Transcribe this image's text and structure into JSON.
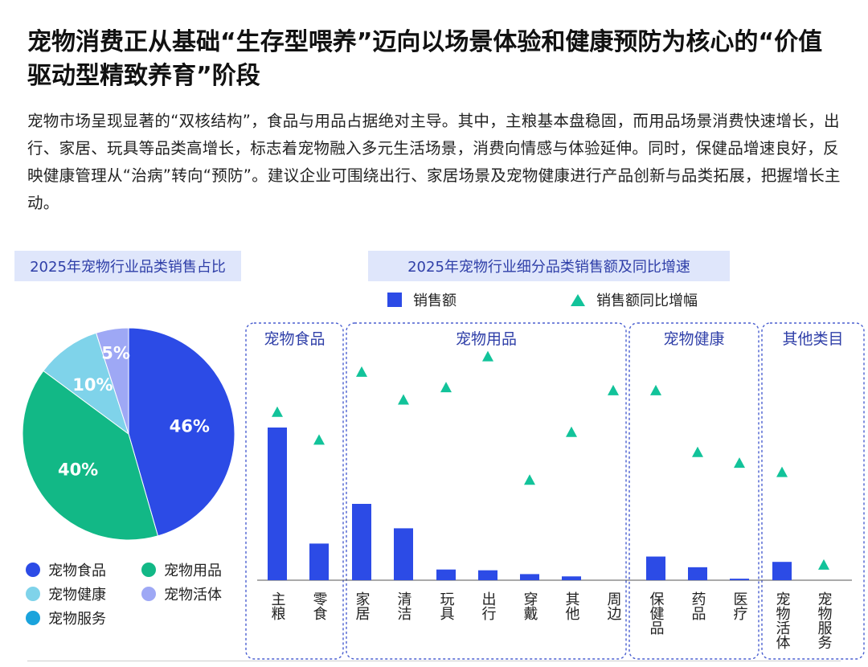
{
  "page": {
    "title": "宠物消费正从基础“生存型喂养”迈向以场景体验和健康预防为核心的“价值驱动型精致养育”阶段",
    "paragraph": "宠物市场呈现显著的“双核结构”，食品与用品占据绝对主导。其中，主粮基本盘稳固，而用品场景消费快速增长，出行、家居、玩具等品类高增长，标志着宠物融入多元生活场景，消费向情感与体验延伸。同时，保健品增速良好，反映健康管理从“治病”转向“预防”。建议企业可围绕出行、家居场景及宠物健康进行产品创新与品类拓展，把握增长主动。"
  },
  "pie_title": "2025年宠物行业品类销售占比",
  "bar_title": "2025年宠物行业细分品类销售额及同比增速",
  "legend": {
    "bar": "销售额",
    "triangle": "销售额同比增幅"
  },
  "colors": {
    "food": "#2c4be6",
    "supplies": "#12b886",
    "health": "#7fd3ea",
    "live": "#9ea8f5",
    "service": "#1aa3dc",
    "bar": "#2c4be6",
    "triangle": "#12c39a"
  },
  "pie_legend": [
    {
      "label": "宠物食品",
      "color": "#2c4be6"
    },
    {
      "label": "宠物用品",
      "color": "#12b886"
    },
    {
      "label": "宠物健康",
      "color": "#7fd3ea"
    },
    {
      "label": "宠物活体",
      "color": "#9ea8f5"
    },
    {
      "label": "宠物服务",
      "color": "#1aa3dc"
    }
  ],
  "groups": [
    {
      "label": "宠物食品",
      "count": 2
    },
    {
      "label": "宠物用品",
      "count": 7
    },
    {
      "label": "宠物健康",
      "count": 3
    },
    {
      "label": "其他类目",
      "count": 2
    }
  ],
  "chart_data": [
    {
      "type": "pie",
      "title": "2025年宠物行业品类销售占比",
      "slices": [
        {
          "name": "宠物食品",
          "value": 46,
          "label": "46%"
        },
        {
          "name": "宠物用品",
          "value": 40,
          "label": "40%"
        },
        {
          "name": "宠物健康",
          "value": 10,
          "label": "10%"
        },
        {
          "name": "宠物活体",
          "value": 5,
          "label": "5%"
        },
        {
          "name": "宠物服务",
          "value": 0,
          "label": ""
        }
      ]
    },
    {
      "type": "bar",
      "title": "2025年宠物行业细分品类销售额及同比增速",
      "categories": [
        "主粮",
        "零食",
        "家居",
        "清洁",
        "玩具",
        "出行",
        "穿戴",
        "其他",
        "周边",
        "保健品",
        "药品",
        "医疗",
        "宠物活体",
        "宠物服务"
      ],
      "series": [
        {
          "name": "销售额",
          "type": "bar",
          "values": [
            100,
            24,
            50,
            34,
            7,
            6.5,
            4,
            2.5,
            0,
            15.5,
            8.5,
            1,
            12,
            0
          ]
        },
        {
          "name": "销售额同比增幅",
          "type": "marker",
          "values": [
            110,
            92,
            136,
            118,
            126,
            146,
            66,
            97,
            124,
            124,
            84,
            77,
            71,
            11
          ]
        }
      ]
    }
  ]
}
